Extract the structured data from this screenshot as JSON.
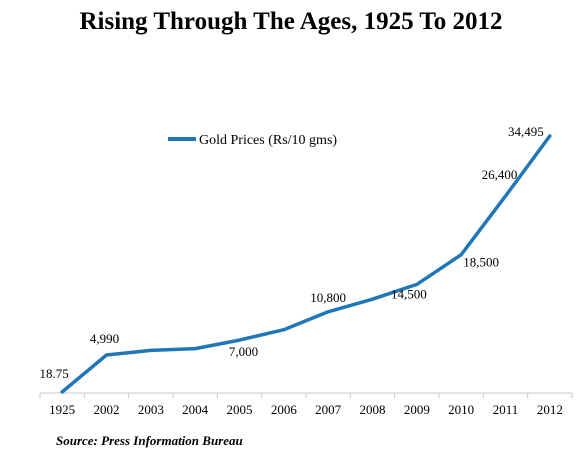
{
  "chart_data": {
    "type": "line",
    "title": "Rising Through The Ages, 1925 To 2012",
    "categories": [
      "1925",
      "2002",
      "2003",
      "2004",
      "2005",
      "2006",
      "2007",
      "2008",
      "2009",
      "2010",
      "2011",
      "2012"
    ],
    "series": [
      {
        "name": "Gold Prices (Rs/10 gms)",
        "color": "#1f77b8",
        "values": [
          18.75,
          4990,
          5600,
          5850,
          7000,
          8400,
          10800,
          12500,
          14500,
          18500,
          26400,
          34495
        ]
      }
    ],
    "data_labels": [
      {
        "index": 0,
        "text": "18.75"
      },
      {
        "index": 1,
        "text": "4,990"
      },
      {
        "index": 4,
        "text": "7,000"
      },
      {
        "index": 6,
        "text": "10,800"
      },
      {
        "index": 8,
        "text": "14,500"
      },
      {
        "index": 9,
        "text": "18,500"
      },
      {
        "index": 10,
        "text": "26,400"
      },
      {
        "index": 11,
        "text": "34,495"
      }
    ],
    "ylim": [
      0,
      34495
    ],
    "xlabel": "",
    "ylabel": "",
    "grid": false,
    "legend_position": "top-center",
    "source": "Source: Press Information Bureau"
  }
}
